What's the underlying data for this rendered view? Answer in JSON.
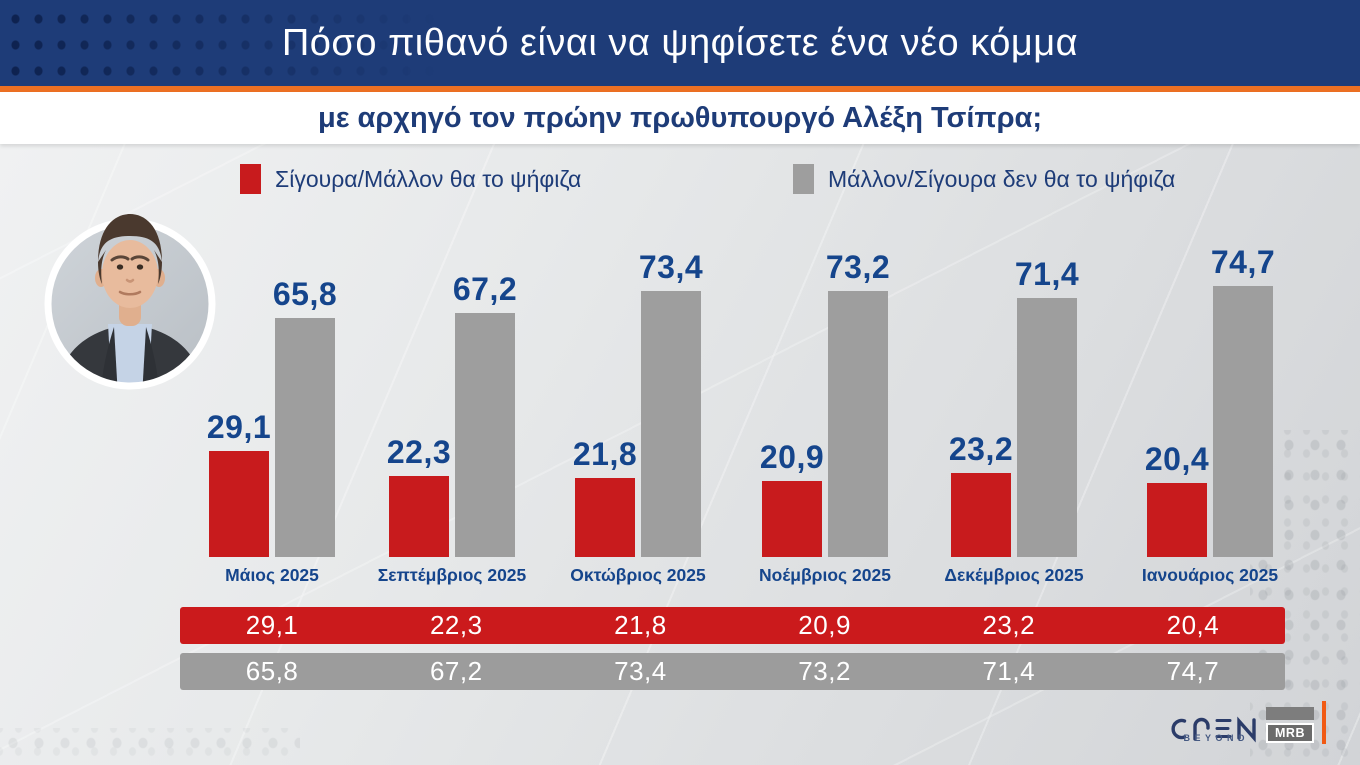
{
  "header": {
    "title": "Πόσο πιθανό είναι να ψηφίσετε ένα νέο κόμμα",
    "subtitle": "με αρχηγό τον πρώην πρωθυπουργό Αλέξη Τσίπρα;"
  },
  "legend": {
    "items": [
      {
        "label": "Σίγουρα/Μάλλον θα το ψήφιζα",
        "color": "#c81b1d"
      },
      {
        "label": "Μάλλον/Σίγουρα δεν θα το ψήφιζα",
        "color": "#9e9e9e"
      }
    ]
  },
  "chart_data": {
    "type": "bar",
    "categories": [
      "Μάιος 2025",
      "Σεπτέμβριος 2025",
      "Οκτώβριος 2025",
      "Νοέμβριος 2025",
      "Δεκέμβριος 2025",
      "Ιανουάριος 2025"
    ],
    "series": [
      {
        "name": "Σίγουρα/Μάλλον θα το ψήφιζα",
        "color": "#c81b1d",
        "values": [
          29.1,
          22.3,
          21.8,
          20.9,
          23.2,
          20.4
        ]
      },
      {
        "name": "Μάλλον/Σίγουρα δεν θα το ψήφιζα",
        "color": "#9e9e9e",
        "values": [
          65.8,
          67.2,
          73.4,
          73.2,
          71.4,
          74.7
        ]
      }
    ],
    "decimal_separator": ",",
    "ylim": [
      0,
      100
    ],
    "grid": false,
    "legend_position": "top",
    "value_label_color": "#15458c",
    "category_label_color": "#15458c",
    "summary_bands": [
      {
        "series_index": 0,
        "color": "#cb1a1c"
      },
      {
        "series_index": 1,
        "color": "#9c9c9c"
      }
    ]
  },
  "footer": {
    "open_logo_label": "OPEN",
    "open_logo_sub": "BEYOND",
    "mrb_label": "MRB"
  },
  "colors": {
    "header_bg": "#1e3c78",
    "accent_orange": "#ed7023",
    "title_text": "#ffffff",
    "subtitle_text": "#1e3c78",
    "value_text": "#15458c",
    "bar_red": "#c81b1d",
    "bar_gray": "#9e9e9e"
  }
}
